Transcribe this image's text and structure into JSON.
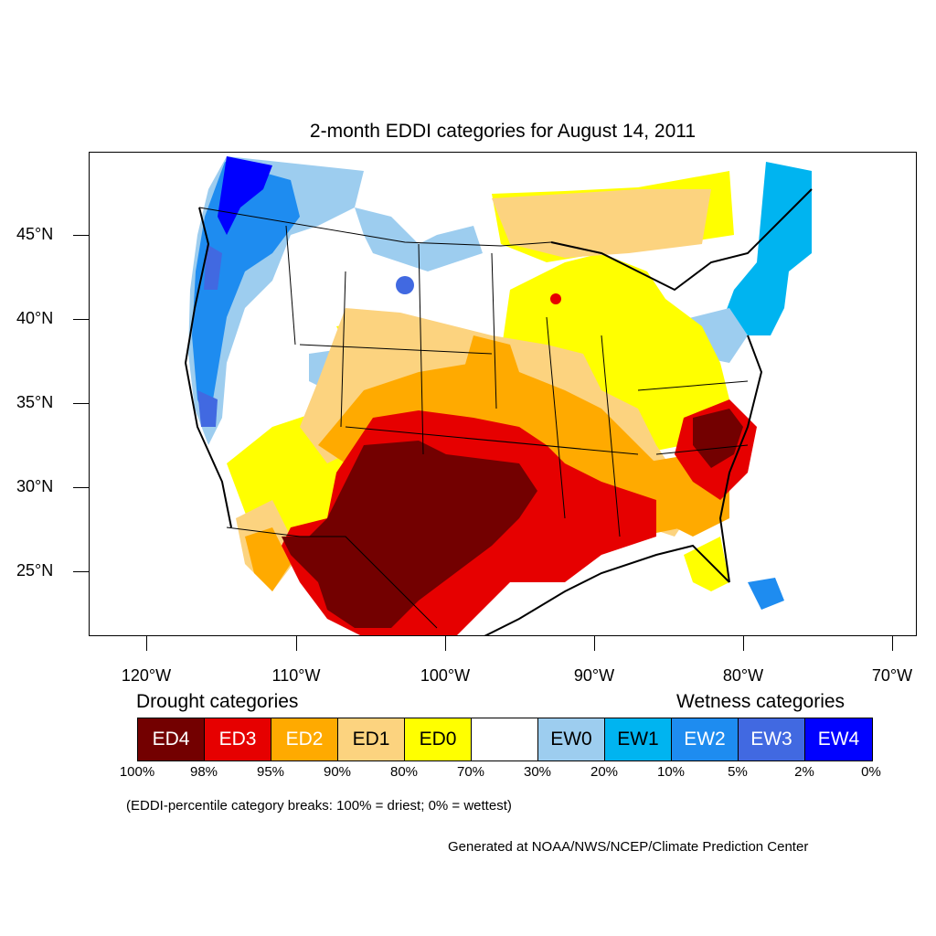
{
  "title": "2-month EDDI categories for August 14, 2011",
  "lat_labels": [
    "45°N",
    "40°N",
    "35°N",
    "30°N",
    "25°N"
  ],
  "lon_labels": [
    "120°W",
    "110°W",
    "100°W",
    "90°W",
    "80°W",
    "70°W"
  ],
  "legend": {
    "drought_heading": "Drought categories",
    "wetness_heading": "Wetness categories",
    "categories": [
      {
        "label": "ED4",
        "color": "#730000",
        "text_color": "#ffffff"
      },
      {
        "label": "ED3",
        "color": "#e60000",
        "text_color": "#ffffff"
      },
      {
        "label": "ED2",
        "color": "#ffaa00",
        "text_color": "#ffffff"
      },
      {
        "label": "ED1",
        "color": "#fcd37f",
        "text_color": "#000000"
      },
      {
        "label": "ED0",
        "color": "#ffff00",
        "text_color": "#000000"
      },
      {
        "label": "",
        "color": "#ffffff",
        "text_color": "#000000"
      },
      {
        "label": "EW0",
        "color": "#9dcdef",
        "text_color": "#000000"
      },
      {
        "label": "EW1",
        "color": "#00b4f0",
        "text_color": "#000000"
      },
      {
        "label": "EW2",
        "color": "#1e8cf0",
        "text_color": "#ffffff"
      },
      {
        "label": "EW3",
        "color": "#4169e1",
        "text_color": "#ffffff"
      },
      {
        "label": "EW4",
        "color": "#0000ff",
        "text_color": "#ffffff"
      }
    ],
    "breaks": [
      "100%",
      "98%",
      "95%",
      "90%",
      "80%",
      "70%",
      "30%",
      "20%",
      "10%",
      "5%",
      "2%",
      "0%"
    ]
  },
  "note": "(EDDI-percentile category breaks: 100% = driest; 0% = wettest)",
  "credit": "Generated at NOAA/NWS/NCEP/Climate Prediction Center"
}
